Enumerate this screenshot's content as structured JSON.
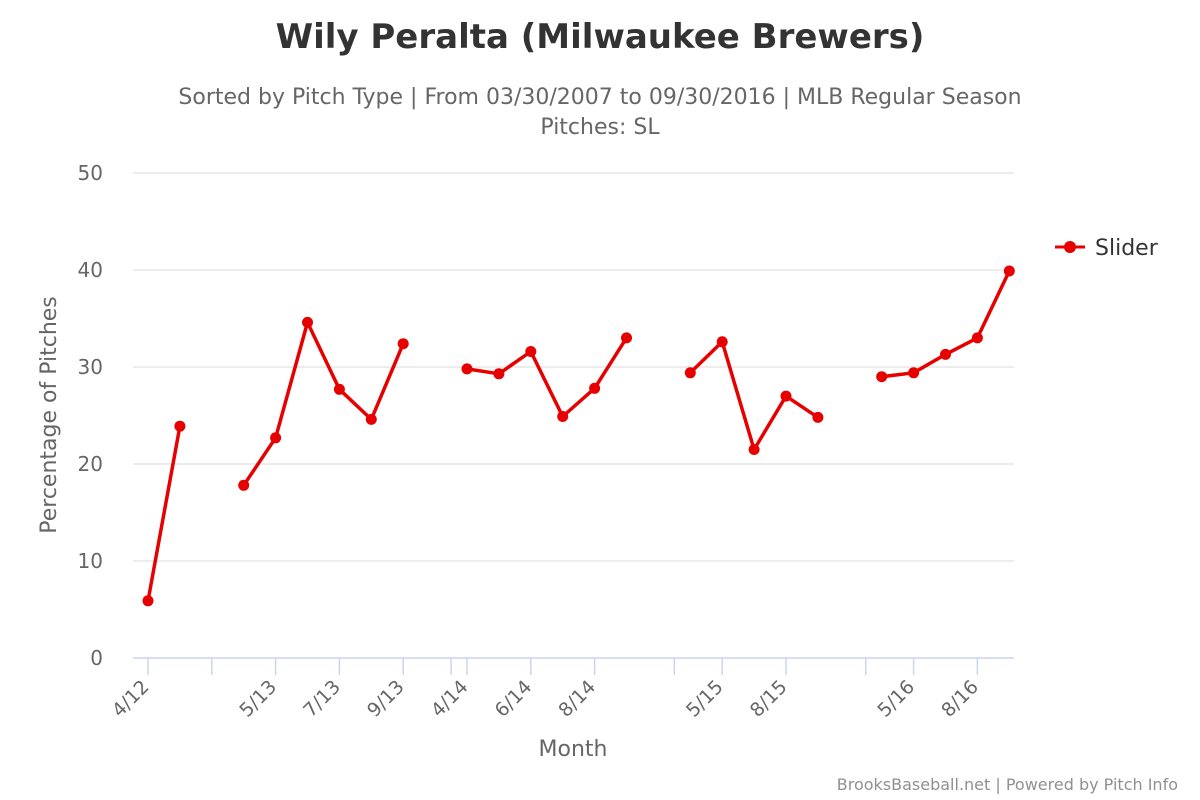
{
  "chart_data": {
    "type": "line",
    "title": "Wily Peralta (Milwaukee Brewers)",
    "subtitle_line1": "Sorted by Pitch Type | From 03/30/2007 to 09/30/2016 | MLB Regular Season",
    "subtitle_line2": "Pitches: SL",
    "xlabel": "Month",
    "ylabel": "Percentage of Pitches",
    "ylim": [
      0,
      50
    ],
    "yticks": [
      0,
      10,
      20,
      30,
      40,
      50
    ],
    "x_tick_labels": [
      {
        "slot": 0,
        "label": "4/12"
      },
      {
        "slot": 4,
        "label": "5/13"
      },
      {
        "slot": 6,
        "label": "7/13"
      },
      {
        "slot": 8,
        "label": "9/13"
      },
      {
        "slot": 10,
        "label": "4/14"
      },
      {
        "slot": 12,
        "label": "6/14"
      },
      {
        "slot": 14,
        "label": "8/14"
      },
      {
        "slot": 18,
        "label": "5/15"
      },
      {
        "slot": 20,
        "label": "8/15"
      },
      {
        "slot": 24,
        "label": "5/16"
      },
      {
        "slot": 26,
        "label": "8/16"
      }
    ],
    "season_separators": [
      2,
      9.5,
      16.5,
      22.5
    ],
    "series": [
      {
        "name": "Slider",
        "color": "#e60000",
        "segments": [
          [
            [
              0,
              5.9
            ],
            [
              1,
              23.9
            ]
          ],
          [
            [
              3,
              17.8
            ],
            [
              4,
              22.7
            ],
            [
              5,
              34.6
            ],
            [
              6,
              27.7
            ],
            [
              7,
              24.6
            ],
            [
              8,
              32.4
            ]
          ],
          [
            [
              10,
              29.8
            ],
            [
              11,
              29.3
            ],
            [
              12,
              31.6
            ],
            [
              13,
              24.9
            ],
            [
              14,
              27.8
            ],
            [
              15,
              33.0
            ]
          ],
          [
            [
              17,
              29.4
            ],
            [
              18,
              32.6
            ],
            [
              19,
              21.5
            ],
            [
              20,
              27.0
            ],
            [
              21,
              24.8
            ]
          ],
          [
            [
              23,
              29.0
            ],
            [
              24,
              29.4
            ],
            [
              25,
              31.3
            ],
            [
              26,
              33.0
            ],
            [
              27,
              39.9
            ]
          ]
        ]
      }
    ],
    "legend_position": "right",
    "grid": true
  },
  "credits": "BrooksBaseball.net | Powered by Pitch Info"
}
